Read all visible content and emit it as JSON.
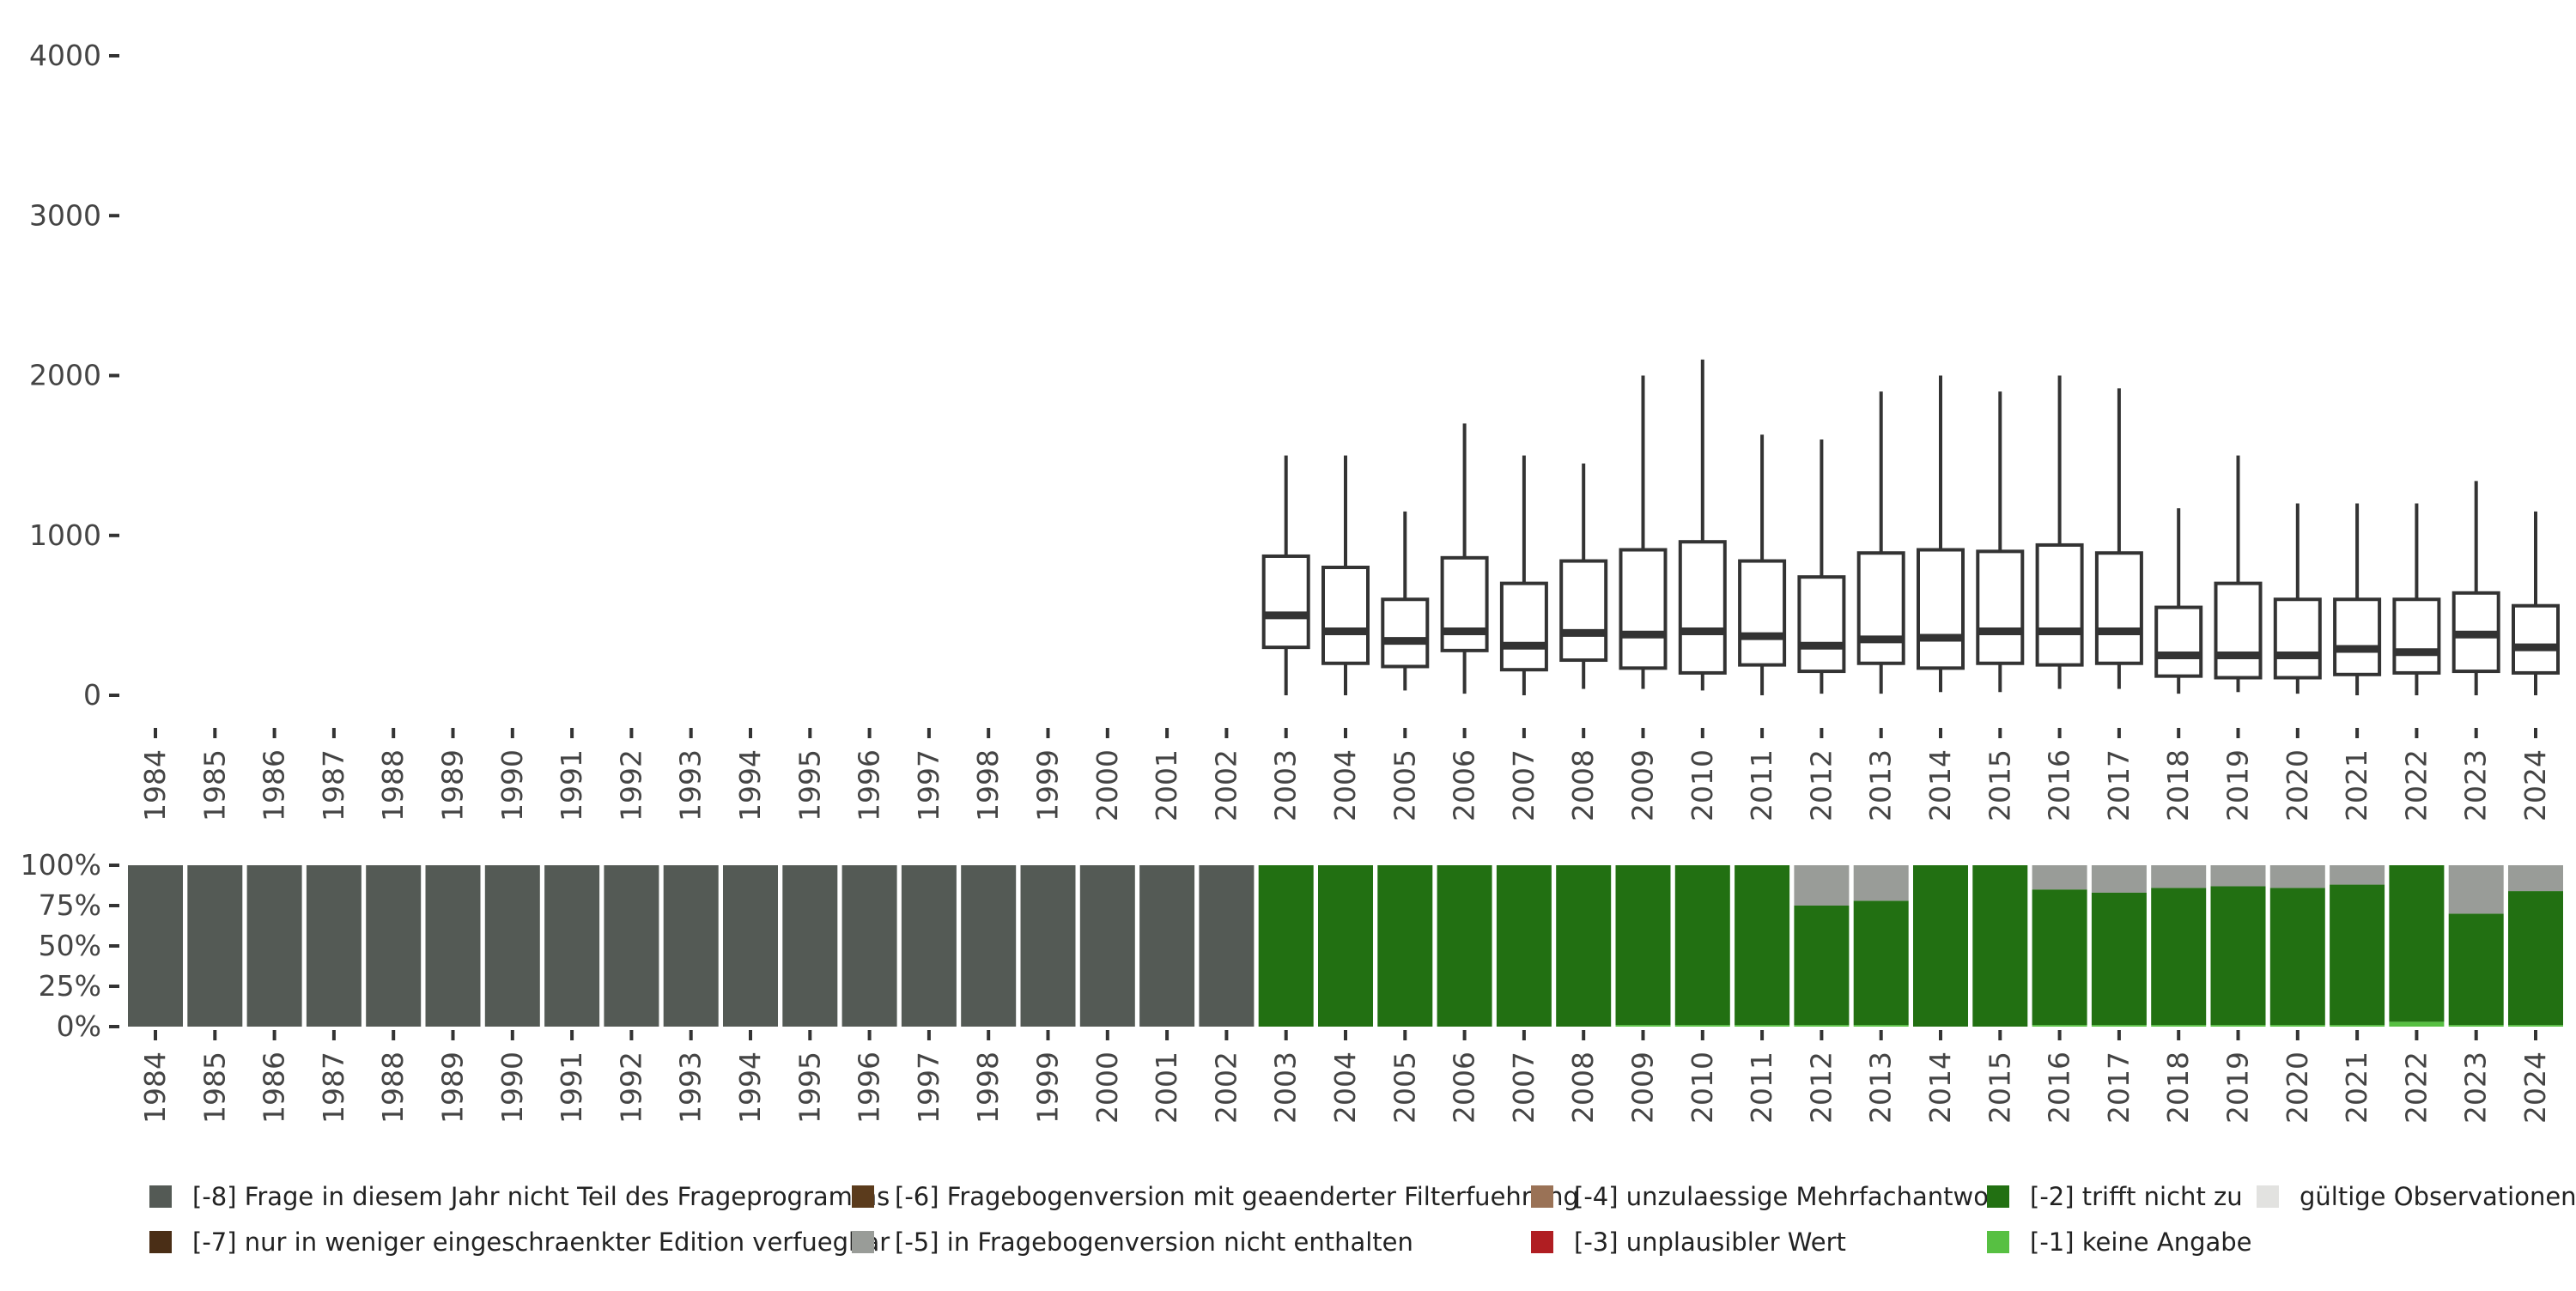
{
  "chart_data": [
    {
      "type": "box",
      "x": [
        "1984",
        "1985",
        "1986",
        "1987",
        "1988",
        "1989",
        "1990",
        "1991",
        "1992",
        "1993",
        "1994",
        "1995",
        "1996",
        "1997",
        "1998",
        "1999",
        "2000",
        "2001",
        "2002",
        "2003",
        "2004",
        "2005",
        "2006",
        "2007",
        "2008",
        "2009",
        "2010",
        "2011",
        "2012",
        "2013",
        "2014",
        "2015",
        "2016",
        "2017",
        "2018",
        "2019",
        "2020",
        "2021",
        "2022",
        "2023",
        "2024"
      ],
      "y_ticks": [
        "0",
        "1000",
        "2000",
        "3000",
        "4000"
      ],
      "ylim": [
        0,
        4000
      ],
      "boxes": [
        {
          "x": "2003",
          "whisker_low": 0,
          "q1": 300,
          "median": 500,
          "q3": 870,
          "whisker_high": 1500
        },
        {
          "x": "2004",
          "whisker_low": 0,
          "q1": 200,
          "median": 400,
          "q3": 800,
          "whisker_high": 1500
        },
        {
          "x": "2005",
          "whisker_low": 30,
          "q1": 180,
          "median": 340,
          "q3": 600,
          "whisker_high": 1150
        },
        {
          "x": "2006",
          "whisker_low": 10,
          "q1": 280,
          "median": 400,
          "q3": 860,
          "whisker_high": 1700
        },
        {
          "x": "2007",
          "whisker_low": 0,
          "q1": 160,
          "median": 310,
          "q3": 700,
          "whisker_high": 1500
        },
        {
          "x": "2008",
          "whisker_low": 40,
          "q1": 220,
          "median": 390,
          "q3": 840,
          "whisker_high": 1450
        },
        {
          "x": "2009",
          "whisker_low": 40,
          "q1": 170,
          "median": 380,
          "q3": 910,
          "whisker_high": 2000
        },
        {
          "x": "2010",
          "whisker_low": 30,
          "q1": 140,
          "median": 400,
          "q3": 960,
          "whisker_high": 2100
        },
        {
          "x": "2011",
          "whisker_low": 0,
          "q1": 190,
          "median": 370,
          "q3": 840,
          "whisker_high": 1630
        },
        {
          "x": "2012",
          "whisker_low": 10,
          "q1": 150,
          "median": 310,
          "q3": 740,
          "whisker_high": 1600
        },
        {
          "x": "2013",
          "whisker_low": 10,
          "q1": 200,
          "median": 350,
          "q3": 890,
          "whisker_high": 1900
        },
        {
          "x": "2014",
          "whisker_low": 20,
          "q1": 170,
          "median": 360,
          "q3": 910,
          "whisker_high": 2000
        },
        {
          "x": "2015",
          "whisker_low": 20,
          "q1": 200,
          "median": 400,
          "q3": 900,
          "whisker_high": 1900
        },
        {
          "x": "2016",
          "whisker_low": 40,
          "q1": 190,
          "median": 400,
          "q3": 940,
          "whisker_high": 2000
        },
        {
          "x": "2017",
          "whisker_low": 40,
          "q1": 200,
          "median": 400,
          "q3": 890,
          "whisker_high": 1920
        },
        {
          "x": "2018",
          "whisker_low": 10,
          "q1": 120,
          "median": 250,
          "q3": 550,
          "whisker_high": 1170
        },
        {
          "x": "2019",
          "whisker_low": 20,
          "q1": 110,
          "median": 250,
          "q3": 700,
          "whisker_high": 1500
        },
        {
          "x": "2020",
          "whisker_low": 10,
          "q1": 110,
          "median": 250,
          "q3": 600,
          "whisker_high": 1200
        },
        {
          "x": "2021",
          "whisker_low": 0,
          "q1": 130,
          "median": 290,
          "q3": 600,
          "whisker_high": 1200
        },
        {
          "x": "2022",
          "whisker_low": 0,
          "q1": 140,
          "median": 270,
          "q3": 600,
          "whisker_high": 1200
        },
        {
          "x": "2023",
          "whisker_low": 0,
          "q1": 150,
          "median": 380,
          "q3": 640,
          "whisker_high": 1340
        },
        {
          "x": "2024",
          "whisker_low": 0,
          "q1": 140,
          "median": 300,
          "q3": 560,
          "whisker_high": 1150
        }
      ]
    },
    {
      "type": "stacked_bar",
      "x": [
        "1984",
        "1985",
        "1986",
        "1987",
        "1988",
        "1989",
        "1990",
        "1991",
        "1992",
        "1993",
        "1994",
        "1995",
        "1996",
        "1997",
        "1998",
        "1999",
        "2000",
        "2001",
        "2002",
        "2003",
        "2004",
        "2005",
        "2006",
        "2007",
        "2008",
        "2009",
        "2010",
        "2011",
        "2012",
        "2013",
        "2014",
        "2015",
        "2016",
        "2017",
        "2018",
        "2019",
        "2020",
        "2021",
        "2022",
        "2023",
        "2024"
      ],
      "y_ticks": [
        "0%",
        "25%",
        "50%",
        "75%",
        "100%"
      ],
      "ylim": [
        0,
        100
      ],
      "series": [
        {
          "name": "[-8] Frage in diesem Jahr nicht Teil des Frageprogramms",
          "color": "#545a55",
          "values": [
            100,
            100,
            100,
            100,
            100,
            100,
            100,
            100,
            100,
            100,
            100,
            100,
            100,
            100,
            100,
            100,
            100,
            100,
            100,
            0,
            0,
            0,
            0,
            0,
            0,
            0,
            0,
            0,
            0,
            0,
            0,
            0,
            0,
            0,
            0,
            0,
            0,
            0,
            0,
            0,
            0
          ]
        },
        {
          "name": "[-1] keine Angabe",
          "color": "#57c042",
          "values": [
            0,
            0,
            0,
            0,
            0,
            0,
            0,
            0,
            0,
            0,
            0,
            0,
            0,
            0,
            0,
            0,
            0,
            0,
            0,
            0,
            0,
            0,
            0,
            0,
            0,
            1,
            1,
            1,
            1,
            1,
            0,
            0,
            1,
            1,
            1,
            1,
            1,
            1,
            3,
            1,
            1
          ]
        },
        {
          "name": "[-2] trifft nicht zu",
          "color": "#227012",
          "values": [
            0,
            0,
            0,
            0,
            0,
            0,
            0,
            0,
            0,
            0,
            0,
            0,
            0,
            0,
            0,
            0,
            0,
            0,
            0,
            100,
            100,
            100,
            100,
            100,
            100,
            99,
            99,
            99,
            74,
            77,
            100,
            100,
            84,
            82,
            85,
            86,
            85,
            87,
            97,
            69,
            83
          ]
        },
        {
          "name": "[-5] in Fragebogenversion nicht enthalten",
          "color": "#999c98",
          "values": [
            0,
            0,
            0,
            0,
            0,
            0,
            0,
            0,
            0,
            0,
            0,
            0,
            0,
            0,
            0,
            0,
            0,
            0,
            0,
            0,
            0,
            0,
            0,
            0,
            0,
            0,
            0,
            0,
            25,
            22,
            0,
            0,
            15,
            17,
            14,
            13,
            14,
            12,
            0,
            30,
            16
          ]
        }
      ]
    }
  ],
  "legend": [
    {
      "label": "[-8] Frage in diesem Jahr nicht Teil des Frageprogramms",
      "color": "#545a55"
    },
    {
      "label": "[-6] Fragebogenversion mit geaenderter Filterfuehrung",
      "color": "#5b3b1c"
    },
    {
      "label": "[-4] unzulaessige Mehrfachantwort",
      "color": "#9a7256"
    },
    {
      "label": "[-2] trifft nicht zu",
      "color": "#227012"
    },
    {
      "label": "gültige Observationen",
      "color": "#e2e2e0"
    },
    {
      "label": "[-7] nur in weniger eingeschraenkter Edition verfuegbar",
      "color": "#4a2e16"
    },
    {
      "label": "[-5] in Fragebogenversion nicht enthalten",
      "color": "#999c98"
    },
    {
      "label": "[-3] unplausibler Wert",
      "color": "#b01e22"
    },
    {
      "label": "[-1] keine Angabe",
      "color": "#57c042"
    }
  ]
}
